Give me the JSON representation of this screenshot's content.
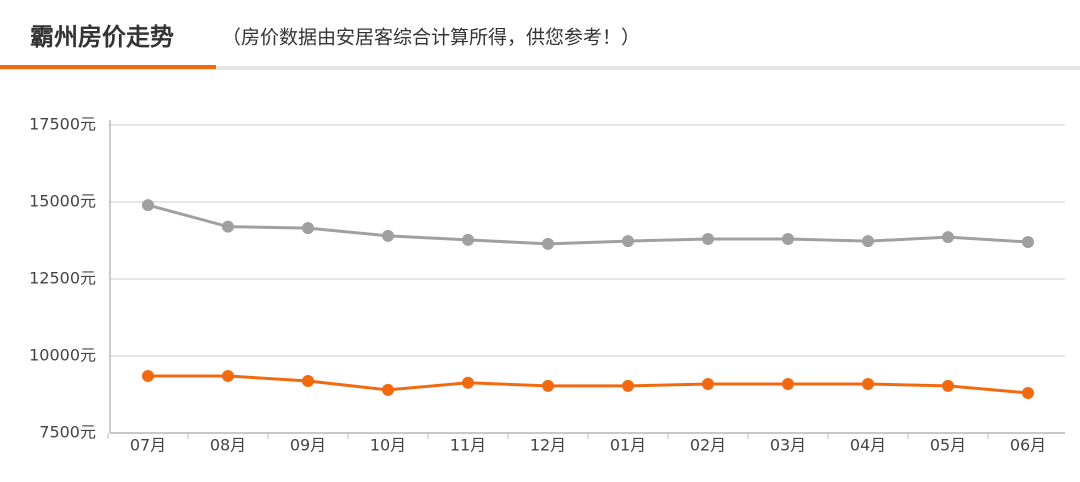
{
  "header": {
    "title": "霸州房价走势",
    "subtitle": "（房价数据由安居客综合计算所得，供您参考！）"
  },
  "chart_data": {
    "type": "line",
    "categories": [
      "07月",
      "08月",
      "09月",
      "10月",
      "11月",
      "12月",
      "01月",
      "02月",
      "03月",
      "04月",
      "05月",
      "06月"
    ],
    "series": [
      {
        "color": "#a0a0a0",
        "values": [
          14900,
          14200,
          14150,
          13900,
          13770,
          13640,
          13730,
          13800,
          13800,
          13730,
          13860,
          13700
        ]
      },
      {
        "color": "#f26a10",
        "values": [
          9350,
          9350,
          9190,
          8900,
          9130,
          9030,
          9030,
          9090,
          9090,
          9090,
          9030,
          8800
        ]
      }
    ],
    "ylim": [
      7500,
      17500
    ],
    "yticks": [
      {
        "value": 7500,
        "label": "7500元"
      },
      {
        "value": 10000,
        "label": "10000元"
      },
      {
        "value": 12500,
        "label": "12500元"
      },
      {
        "value": 15000,
        "label": "15000元"
      },
      {
        "value": 17500,
        "label": "17500元"
      }
    ],
    "grid": true
  }
}
